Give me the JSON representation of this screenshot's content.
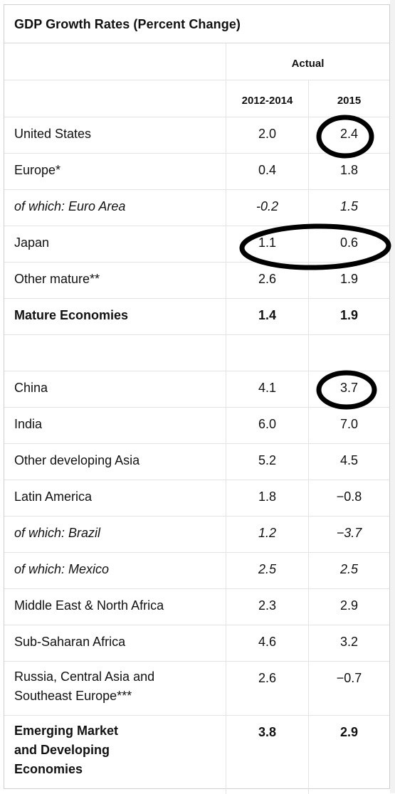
{
  "title": "GDP Growth Rates (Percent Change)",
  "header": {
    "group_label": "Actual",
    "columns": [
      "2012-2014",
      "2015"
    ]
  },
  "rows": [
    {
      "label": "United States",
      "a": "2.0",
      "b": "2.4",
      "style": "normal"
    },
    {
      "label": "Europe*",
      "a": "0.4",
      "b": "1.8",
      "style": "normal"
    },
    {
      "label": "of which: Euro Area",
      "a": "-0.2",
      "b": "1.5",
      "style": "italic"
    },
    {
      "label": "Japan",
      "a": "1.1",
      "b": "0.6",
      "style": "normal"
    },
    {
      "label": "Other mature**",
      "a": "2.6",
      "b": "1.9",
      "style": "normal"
    },
    {
      "label": "Mature Economies",
      "a": "1.4",
      "b": "1.9",
      "style": "bold"
    },
    {
      "label": "",
      "a": "",
      "b": "",
      "style": "normal"
    },
    {
      "label": "China",
      "a": "4.1",
      "b": "3.7",
      "style": "normal"
    },
    {
      "label": "India",
      "a": "6.0",
      "b": "7.0",
      "style": "normal"
    },
    {
      "label": "Other developing Asia",
      "a": "5.2",
      "b": "4.5",
      "style": "normal"
    },
    {
      "label": "Latin America",
      "a": "1.8",
      "b": "−0.8",
      "style": "normal"
    },
    {
      "label": "of which: Brazil",
      "a": "1.2",
      "b": "−3.7",
      "style": "italic"
    },
    {
      "label": "of which: Mexico",
      "a": "2.5",
      "b": "2.5",
      "style": "italic"
    },
    {
      "label": "Middle East & North Africa",
      "a": "2.3",
      "b": "2.9",
      "style": "normal"
    },
    {
      "label": "Sub-Saharan Africa",
      "a": "4.6",
      "b": "3.2",
      "style": "normal"
    },
    {
      "label_lines": [
        "Russia, Central Asia and",
        "Southeast Europe***"
      ],
      "a": "2.6",
      "b": "−0.7",
      "style": "normal"
    },
    {
      "label_lines": [
        "Emerging Market",
        "and Developing",
        "Economies"
      ],
      "a": "3.8",
      "b": "2.9",
      "style": "bold"
    }
  ]
}
